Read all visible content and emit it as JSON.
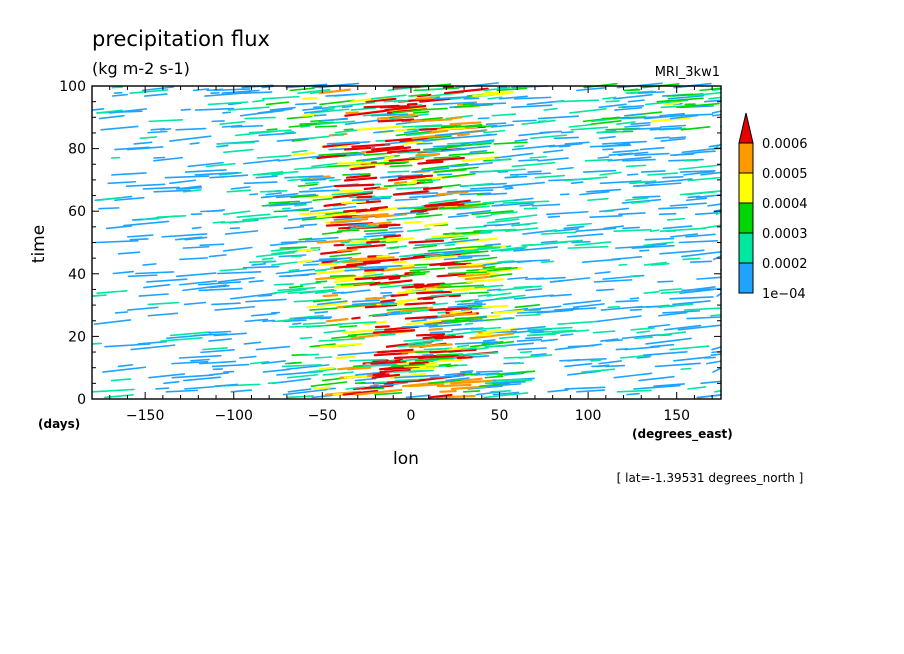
{
  "chart_data": {
    "type": "heatmap",
    "title": "precipitation flux",
    "subtitle": "(kg m-2 s-1)",
    "model_label": "MRI_3kw1",
    "xlabel": "lon",
    "xunits": "(degrees_east)",
    "ylabel": "time",
    "yunits": "(days)",
    "footnote": "[ lat=-1.39531 degrees_north ]",
    "xlim": [
      -180,
      175
    ],
    "ylim": [
      0,
      100
    ],
    "x_ticks": [
      -150,
      -100,
      -50,
      0,
      50,
      100,
      150
    ],
    "y_ticks": [
      0,
      20,
      40,
      60,
      80,
      100
    ],
    "x_tick_labels": [
      "-150",
      "-100",
      "-50",
      "0",
      "50",
      "100",
      "150"
    ],
    "y_tick_labels": [
      "0",
      "20",
      "40",
      "60",
      "80",
      "100"
    ],
    "colorbar": {
      "levels": [
        "1e-04",
        "0.0002",
        "0.0003",
        "0.0004",
        "0.0005",
        "0.0006"
      ],
      "colors": [
        "#1fa3ff",
        "#00e8a0",
        "#00d700",
        "#ffff00",
        "#ff9900",
        "#e60000"
      ],
      "extend": "max"
    },
    "note": "Hovmoller diagram: precipitation concentrated between lon -70 and 60 throughout days 0-100, with eastward-propagating streaks; sparse light rain elsewhere."
  }
}
